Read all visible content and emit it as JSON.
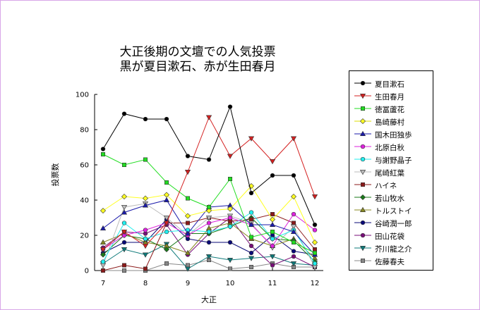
{
  "chart_data": {
    "type": "line",
    "title": "大正後期の文壇での人気投票",
    "subtitle": "黒が夏目漱石、赤が生田春月",
    "xlabel": "大正",
    "ylabel": "投票数",
    "xlim": [
      6.8,
      12.2
    ],
    "ylim": [
      0,
      100
    ],
    "xticks": [
      7,
      8,
      9,
      10,
      11,
      12
    ],
    "yticks": [
      0,
      20,
      40,
      60,
      80,
      100
    ],
    "grid": false,
    "legend_position": "right",
    "x": [
      7,
      7.5,
      8,
      8.5,
      9,
      9.5,
      10,
      10.5,
      11,
      11.5,
      12
    ],
    "series": [
      {
        "name": "夏目漱石",
        "color": "#000000",
        "marker": "circle",
        "values": [
          69,
          89,
          86,
          86,
          65,
          63,
          93,
          44,
          54,
          54,
          26
        ]
      },
      {
        "name": "生田春月",
        "color": "#d42020",
        "marker": "tri-down",
        "values": [
          12,
          22,
          14,
          27,
          56,
          87,
          65,
          75,
          62,
          75,
          42
        ]
      },
      {
        "name": "徳冨蘆花",
        "color": "#22dd22",
        "marker": "square",
        "values": [
          66,
          60,
          63,
          50,
          41,
          36,
          52,
          19,
          22,
          16,
          10
        ]
      },
      {
        "name": "島崎藤村",
        "color": "#ffff22",
        "marker": "diamond",
        "values": [
          34,
          42,
          41,
          43,
          31,
          34,
          35,
          48,
          29,
          42,
          16
        ]
      },
      {
        "name": "国木田独歩",
        "color": "#1a1aaa",
        "marker": "tri-up",
        "values": [
          24,
          33,
          37,
          40,
          21,
          36,
          37,
          26,
          26,
          22,
          9
        ]
      },
      {
        "name": "北原白秋",
        "color": "#dd22dd",
        "marker": "circle",
        "values": [
          12,
          20,
          23,
          27,
          20,
          27,
          30,
          26,
          14,
          32,
          23
        ]
      },
      {
        "name": "与謝野晶子",
        "color": "#22eeee",
        "marker": "circle",
        "values": [
          5,
          27,
          18,
          22,
          23,
          22,
          25,
          33,
          18,
          23,
          4
        ]
      },
      {
        "name": "尾崎紅葉",
        "color": "#bbbbbb",
        "marker": "tri-down",
        "values": [
          3,
          36,
          38,
          30,
          20,
          30,
          31,
          27,
          13,
          25,
          2
        ]
      },
      {
        "name": "ハイネ",
        "color": "#8b1a1a",
        "marker": "square",
        "values": [
          0,
          3,
          1,
          27,
          27,
          30,
          28,
          29,
          32,
          27,
          12
        ]
      },
      {
        "name": "若山牧水",
        "color": "#1a7a1a",
        "marker": "diamond",
        "values": [
          9,
          20,
          18,
          12,
          21,
          21,
          25,
          30,
          18,
          17,
          5
        ]
      },
      {
        "name": "トルストイ",
        "color": "#888822",
        "marker": "tri-up",
        "values": [
          16,
          21,
          16,
          14,
          10,
          24,
          27,
          18,
          14,
          18,
          7
        ]
      },
      {
        "name": "谷崎潤一郎",
        "color": "#0a0a77",
        "marker": "circle",
        "values": [
          10,
          16,
          16,
          29,
          18,
          16,
          16,
          10,
          20,
          11,
          9
        ]
      },
      {
        "name": "田山花袋",
        "color": "#770e77",
        "marker": "circle",
        "values": [
          13,
          22,
          21,
          26,
          9,
          21,
          30,
          14,
          3,
          8,
          2
        ]
      },
      {
        "name": "芥川龍之介",
        "color": "#0e7a7a",
        "marker": "tri-down",
        "values": [
          4,
          12,
          9,
          15,
          1,
          8,
          6,
          7,
          8,
          4,
          3
        ]
      },
      {
        "name": "佐藤春夫",
        "color": "#888888",
        "marker": "square",
        "values": [
          0,
          0,
          0,
          4,
          3,
          6,
          1,
          2,
          4,
          2,
          2
        ]
      }
    ]
  }
}
